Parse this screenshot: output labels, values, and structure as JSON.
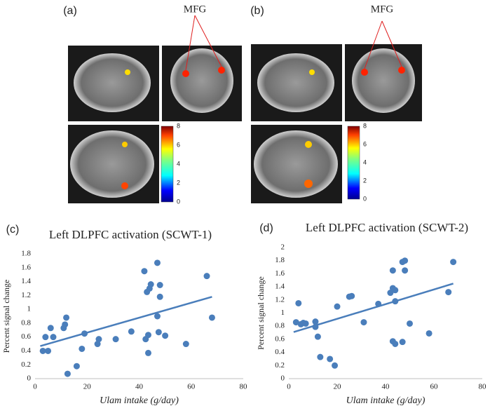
{
  "panels": {
    "a": {
      "label": "(a)",
      "annotation": "MFG",
      "colorbar": {
        "lim": [
          0,
          8
        ],
        "ticks": [
          0,
          2,
          4,
          6,
          8
        ]
      }
    },
    "b": {
      "label": "(b)",
      "annotation": "MFG",
      "colorbar": {
        "lim": [
          0,
          8
        ],
        "ticks": [
          0,
          2,
          4,
          6,
          8
        ]
      }
    }
  },
  "chart_data": [
    {
      "type": "scatter",
      "label": "(c)",
      "title": "Left DLPFC activation (SCWT-1)",
      "xlabel": "Ulam intake (g/day)",
      "ylabel": "Percent signal change",
      "color": "#4a7ebb",
      "x": [
        3,
        4,
        5,
        6,
        7,
        11,
        11.5,
        12,
        12.5,
        16,
        18,
        19,
        24,
        24.5,
        31,
        37,
        42,
        42.5,
        43,
        43.5,
        43.5,
        44,
        44.5,
        47,
        47,
        47.5,
        48,
        48,
        50,
        58,
        66,
        68
      ],
      "values": [
        0.4,
        0.6,
        0.4,
        0.73,
        0.6,
        0.73,
        0.78,
        0.88,
        0.07,
        0.18,
        0.43,
        0.65,
        0.5,
        0.57,
        0.57,
        0.68,
        1.55,
        0.57,
        1.25,
        0.37,
        0.63,
        1.3,
        1.36,
        0.9,
        1.67,
        0.67,
        1.35,
        1.18,
        0.62,
        0.5,
        1.48,
        0.88
      ],
      "trendline": {
        "x": [
          2,
          68
        ],
        "y": [
          0.47,
          1.18
        ]
      },
      "xlim": [
        0,
        80
      ],
      "xticks": [
        0,
        20,
        40,
        60,
        80
      ],
      "ylim": [
        0,
        1.8
      ],
      "yticks": [
        0,
        0.2,
        0.4,
        0.6,
        0.8,
        1,
        1.2,
        1.4,
        1.6,
        1.8
      ]
    },
    {
      "type": "scatter",
      "label": "(d)",
      "title": "Left DLPFC activation (SCWT-2)",
      "xlabel": "Ulam intake (g/day)",
      "ylabel": "Percent signal change",
      "color": "#4a7ebb",
      "x": [
        3,
        4,
        5,
        6,
        7,
        11,
        11,
        12,
        13,
        17,
        19,
        20,
        25,
        26,
        31,
        37,
        42,
        43,
        43,
        43,
        44,
        44,
        44,
        47,
        47,
        48,
        48,
        50,
        58,
        66,
        68
      ],
      "values": [
        0.86,
        1.15,
        0.83,
        0.85,
        0.84,
        0.87,
        0.79,
        0.64,
        0.33,
        0.3,
        0.2,
        1.1,
        1.25,
        1.26,
        0.86,
        1.14,
        1.31,
        0.57,
        1.38,
        1.65,
        0.53,
        1.35,
        1.18,
        1.78,
        0.56,
        1.65,
        1.8,
        0.84,
        0.69,
        1.32,
        1.78
      ],
      "trendline": {
        "x": [
          2,
          68
        ],
        "y": [
          0.71,
          1.45
        ]
      },
      "xlim": [
        0,
        80
      ],
      "xticks": [
        0,
        20,
        40,
        60,
        80
      ],
      "ylim": [
        0,
        2
      ],
      "yticks": [
        0,
        0.2,
        0.4,
        0.6,
        0.8,
        1,
        1.2,
        1.4,
        1.6,
        1.8,
        2
      ]
    }
  ]
}
